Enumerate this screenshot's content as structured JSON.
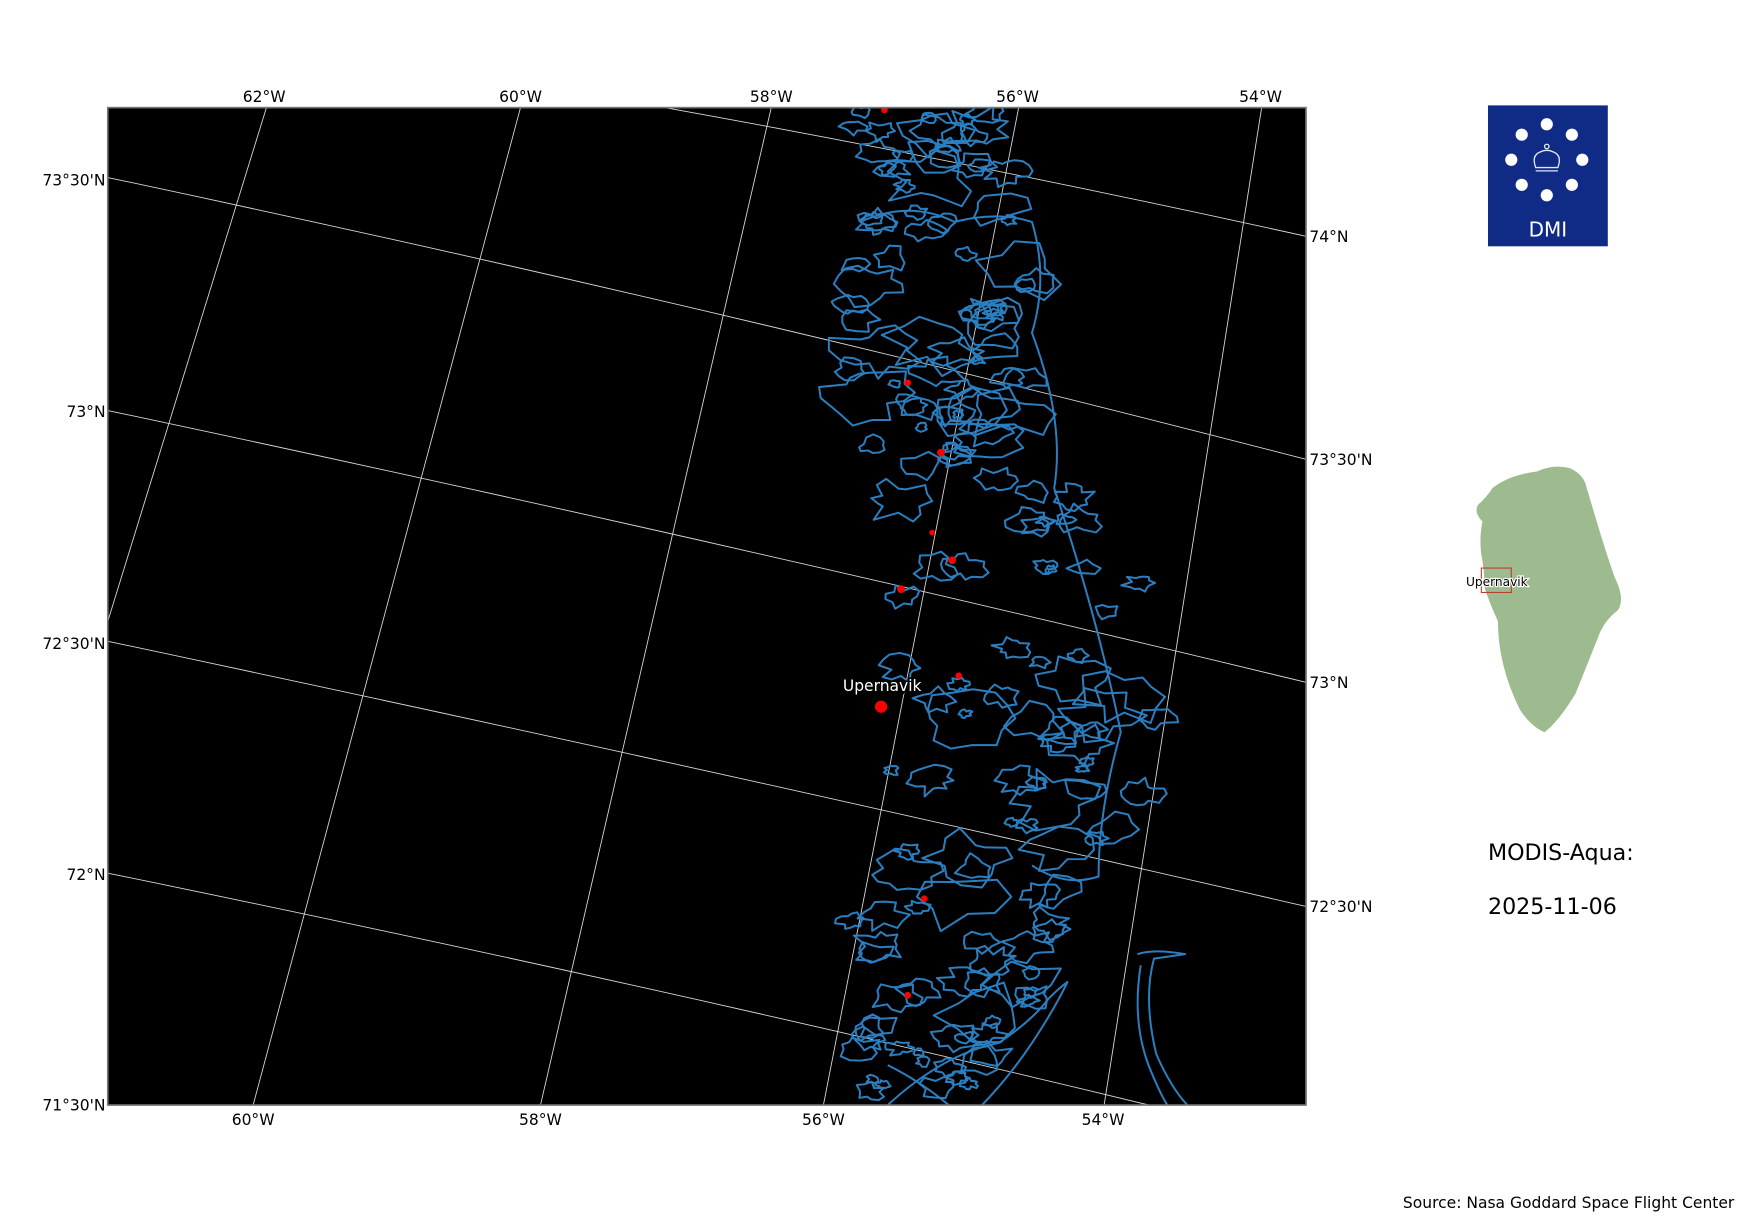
{
  "map": {
    "top_lon_labels": [
      "62°W",
      "60°W",
      "58°W",
      "56°W",
      "54°W"
    ],
    "bottom_lon_labels": [
      "60°W",
      "58°W",
      "56°W",
      "54°W"
    ],
    "left_lat_labels": [
      "73°30'N",
      "73°N",
      "72°30'N",
      "72°N",
      "71°30'N"
    ],
    "right_lat_labels": [
      "74°N",
      "73°30'N",
      "73°N",
      "72°30'N"
    ],
    "town_label": "Upernavik",
    "colors": {
      "background": "#000000",
      "coastline": "#2b7fc0",
      "settlement": "#ff0000",
      "gridline": "#d8d8d8"
    }
  },
  "logo": {
    "text": "DMI",
    "color": "#0f2b86"
  },
  "inset": {
    "label": "Upernavik",
    "land_color": "#9dbb8f",
    "extent_color": "#b5432a"
  },
  "info": {
    "satellite": "MODIS-Aqua:",
    "date": "2025-11-06"
  },
  "source": "Source: Nasa Goddard Space Flight Center"
}
